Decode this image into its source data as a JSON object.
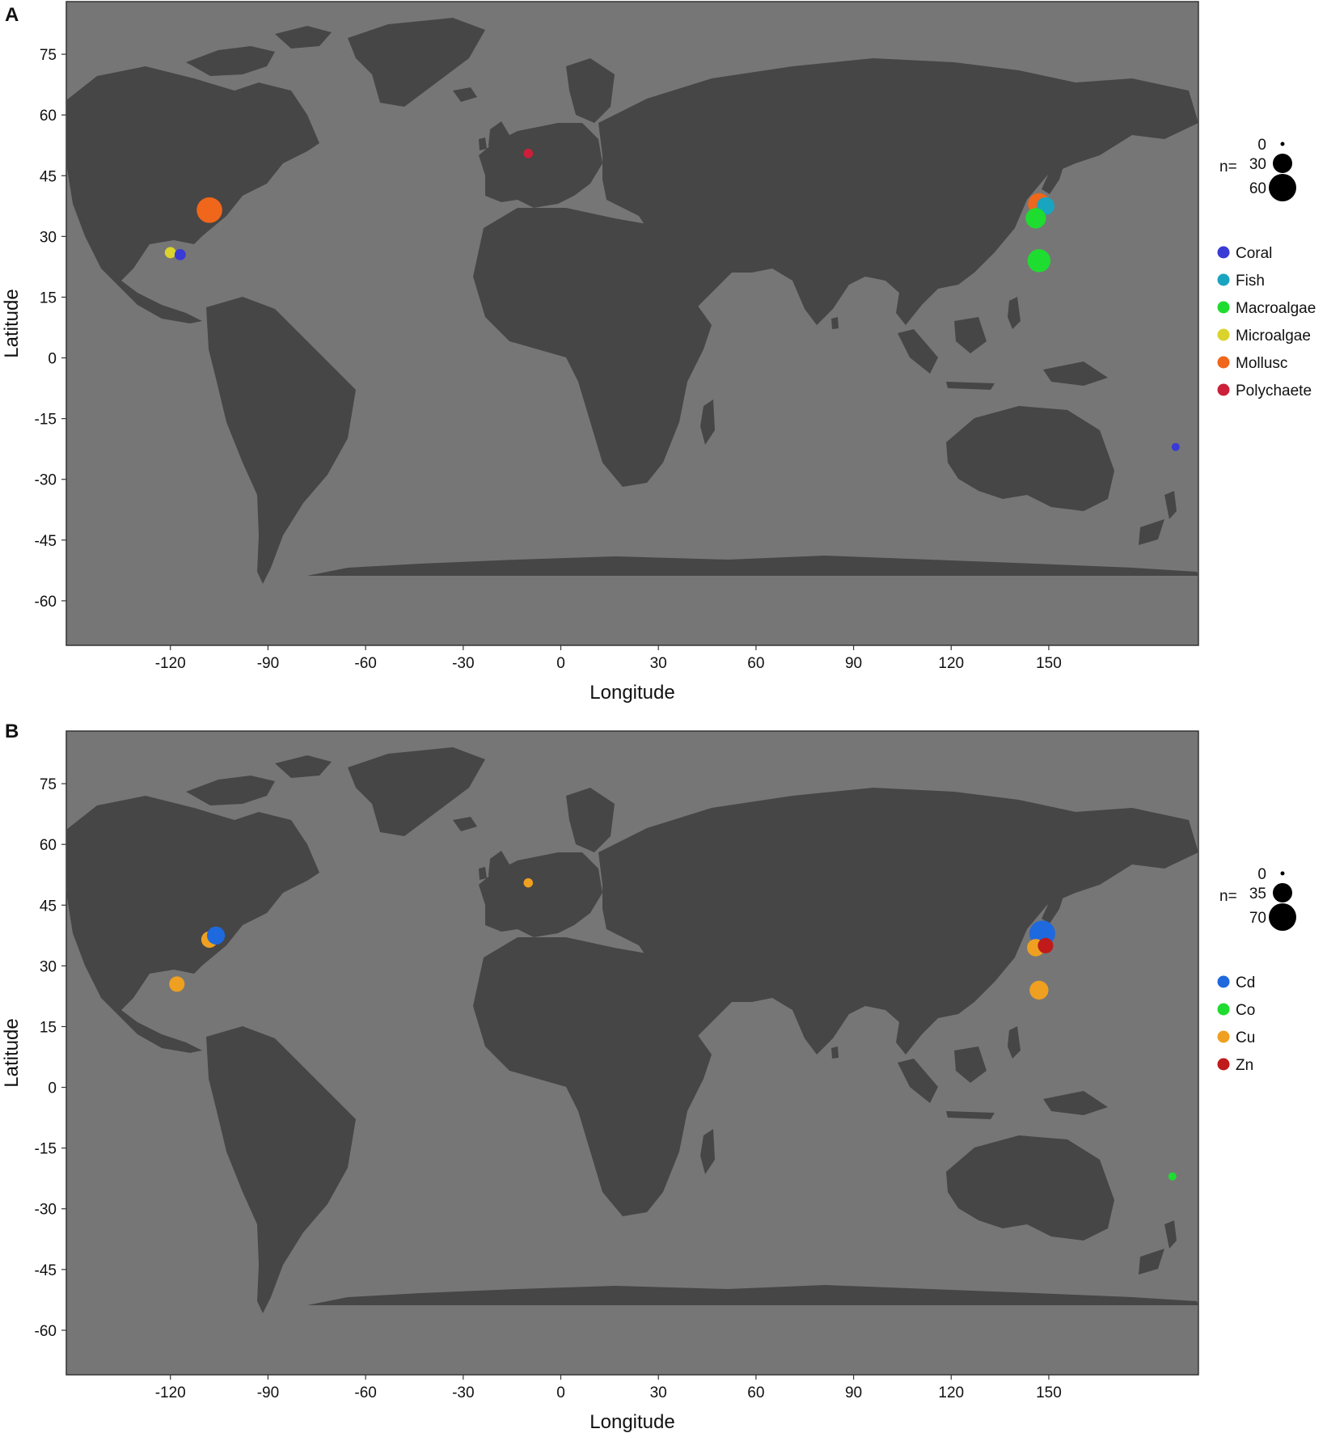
{
  "figure": {
    "colors": {
      "ocean": "#767676",
      "land": "#464646",
      "frame": "#333333"
    },
    "panels": [
      {
        "letter": "A",
        "xlabel": "Longitude",
        "ylabel": "Latitude",
        "x_ticks": [
          -120,
          -90,
          -60,
          -30,
          0,
          30,
          60,
          90,
          120,
          150
        ],
        "y_ticks": [
          75,
          60,
          45,
          30,
          15,
          0,
          -15,
          -30,
          -45,
          -60
        ],
        "xlim": [
          -152,
          196
        ],
        "ylim": [
          -71,
          88
        ],
        "size_legend": {
          "label": "n=",
          "entries": [
            {
              "value": "0",
              "n": 0
            },
            {
              "value": "30",
              "n": 30
            },
            {
              "value": "60",
              "n": 60
            }
          ]
        },
        "color_legend": [
          {
            "name": "Coral",
            "color": "#3a3ad6"
          },
          {
            "name": "Fish",
            "color": "#19a5c0"
          },
          {
            "name": "Macroalgae",
            "color": "#1fdc30"
          },
          {
            "name": "Microalgae",
            "color": "#dad32c"
          },
          {
            "name": "Mollusc",
            "color": "#f0661a"
          },
          {
            "name": "Polychaete",
            "color": "#cc1f3a"
          }
        ],
        "points": [
          {
            "lon": -108,
            "lat": 36.5,
            "n": 52,
            "category": "Mollusc"
          },
          {
            "lon": -120,
            "lat": 26,
            "n": 10,
            "category": "Microalgae"
          },
          {
            "lon": -117,
            "lat": 25.5,
            "n": 10,
            "category": "Coral"
          },
          {
            "lon": -10,
            "lat": 50.5,
            "n": 7,
            "category": "Polychaete"
          },
          {
            "lon": 147,
            "lat": 38,
            "n": 38,
            "category": "Mollusc"
          },
          {
            "lon": 149,
            "lat": 37.5,
            "n": 25,
            "category": "Fish"
          },
          {
            "lon": 146,
            "lat": 34.5,
            "n": 33,
            "category": "Macroalgae"
          },
          {
            "lon": 147,
            "lat": 24,
            "n": 42,
            "category": "Macroalgae"
          },
          {
            "lon": 189,
            "lat": -22,
            "n": 5,
            "category": "Coral"
          }
        ]
      },
      {
        "letter": "B",
        "xlabel": "Longitude",
        "ylabel": "Latitude",
        "x_ticks": [
          -120,
          -90,
          -60,
          -30,
          0,
          30,
          60,
          90,
          120,
          150
        ],
        "y_ticks": [
          75,
          60,
          45,
          30,
          15,
          0,
          -15,
          -30,
          -45,
          -60
        ],
        "xlim": [
          -152,
          196
        ],
        "ylim": [
          -71,
          88
        ],
        "size_legend": {
          "label": "n=",
          "entries": [
            {
              "value": "0",
              "n": 0
            },
            {
              "value": "35",
              "n": 35
            },
            {
              "value": "70",
              "n": 70
            }
          ]
        },
        "color_legend": [
          {
            "name": "Cd",
            "color": "#1f69de"
          },
          {
            "name": "Co",
            "color": "#1fdc30"
          },
          {
            "name": "Cu",
            "color": "#efa020"
          },
          {
            "name": "Zn",
            "color": "#c01a1a"
          }
        ],
        "points": [
          {
            "lon": -108,
            "lat": 36.5,
            "n": 25,
            "category": "Cu"
          },
          {
            "lon": -106,
            "lat": 37.5,
            "n": 30,
            "category": "Cd"
          },
          {
            "lon": -118,
            "lat": 25.5,
            "n": 22,
            "category": "Cu"
          },
          {
            "lon": -10,
            "lat": 50.5,
            "n": 8,
            "category": "Cu"
          },
          {
            "lon": 148,
            "lat": 38,
            "n": 62,
            "category": "Cd"
          },
          {
            "lon": 146,
            "lat": 34.5,
            "n": 28,
            "category": "Cu"
          },
          {
            "lon": 149,
            "lat": 35,
            "n": 22,
            "category": "Zn"
          },
          {
            "lon": 147,
            "lat": 24,
            "n": 33,
            "category": "Cu"
          },
          {
            "lon": 188,
            "lat": -22,
            "n": 6,
            "category": "Co"
          }
        ]
      }
    ]
  }
}
